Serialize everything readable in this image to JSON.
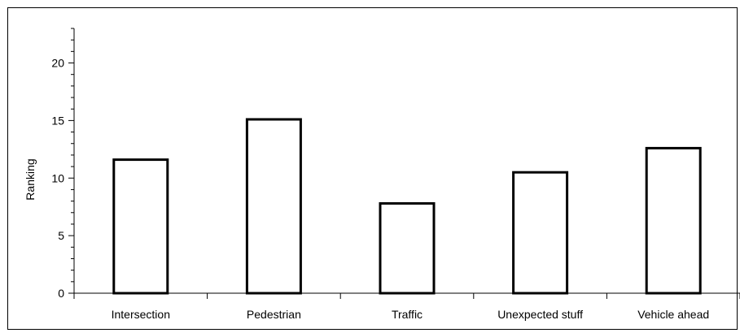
{
  "chart_data": {
    "type": "bar",
    "title": "",
    "xlabel": "",
    "ylabel": "Ranking",
    "ylim": [
      0,
      23
    ],
    "yticks": [
      0,
      5,
      10,
      15,
      20
    ],
    "categories": [
      "Intersection",
      "Pedestrian",
      "Traffic",
      "Unexpected stuff",
      "Vehicle ahead"
    ],
    "values": [
      11.6,
      15.1,
      7.8,
      10.5,
      12.6
    ],
    "grid": false,
    "legend": "none",
    "colors": {
      "bar_fill": "#ffffff",
      "bar_stroke": "#000000",
      "axis": "#000000"
    }
  }
}
